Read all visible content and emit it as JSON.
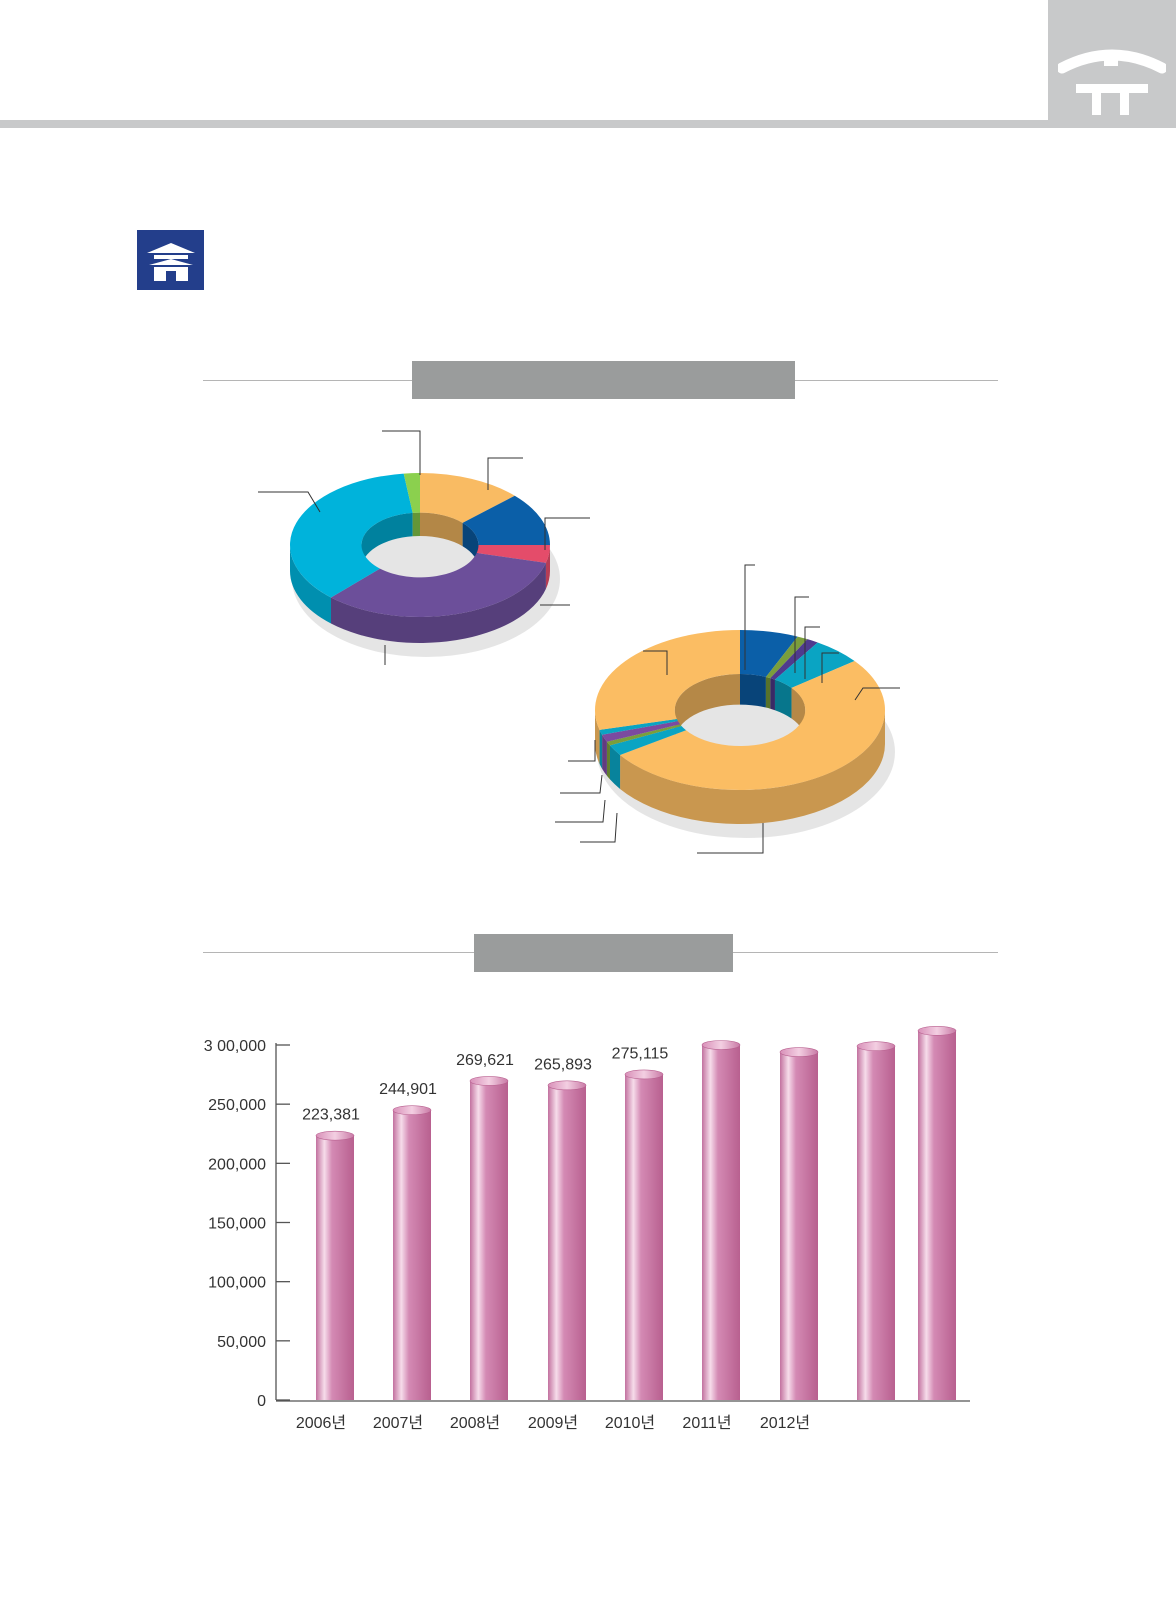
{
  "colors": {
    "header_bar": "#c8c9ca",
    "badge": "#233e8b",
    "section_title_box": "#9a9c9c",
    "bar": "#c2719f"
  },
  "icons": {
    "corner": "roof-symbol-icon",
    "badge": "palace-gate-icon"
  },
  "chart_data": [
    {
      "type": "pie",
      "variant": "donut-3d",
      "slices": [
        {
          "value": 13,
          "color": "#f9bb63"
        },
        {
          "value": 12,
          "color": "#0b5fa8"
        },
        {
          "value": 4,
          "color": "#e44c6a"
        },
        {
          "value": 33,
          "color": "#6c4f9a"
        },
        {
          "value": 36,
          "color": "#00b3db"
        },
        {
          "value": 2,
          "color": "#8bd04e"
        }
      ]
    },
    {
      "type": "pie",
      "variant": "donut-3d",
      "slices": [
        {
          "value": 6.5,
          "color": "#0b5fa8"
        },
        {
          "value": 1.2,
          "color": "#7a9e3c"
        },
        {
          "value": 1.3,
          "color": "#4f3a8e"
        },
        {
          "value": 5.5,
          "color": "#0aa4c3"
        },
        {
          "value": 51,
          "color": "#fbbd63"
        },
        {
          "value": 2.2,
          "color": "#0aa4c3"
        },
        {
          "value": 0.8,
          "color": "#7a9e3c"
        },
        {
          "value": 1.5,
          "color": "#7b4aa0"
        },
        {
          "value": 1.0,
          "color": "#0aa4c3"
        },
        {
          "value": 29,
          "color": "#fbbd63"
        }
      ]
    },
    {
      "type": "bar",
      "categories": [
        "2006년",
        "2007년",
        "2008년",
        "2009년",
        "2010년",
        "2011년",
        "2012년",
        "",
        ""
      ],
      "values": [
        223381,
        244901,
        269621,
        265893,
        275115,
        300000,
        294000,
        299000,
        312000
      ],
      "data_labels": [
        "223,381",
        "244,901",
        "269,621",
        "265,893",
        "275,115",
        "",
        "",
        "",
        ""
      ],
      "ylim": [
        0,
        300000
      ],
      "yticks": [
        0,
        50000,
        100000,
        150000,
        200000,
        250000,
        300000
      ],
      "ytick_labels": [
        "0",
        "50,000",
        "100,000",
        "150,000",
        "200,000",
        "250,000",
        "3 00,000"
      ],
      "grid": false
    }
  ]
}
